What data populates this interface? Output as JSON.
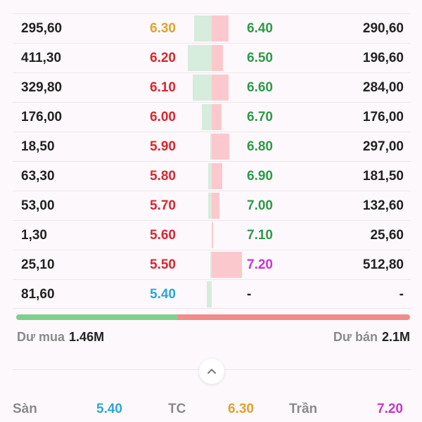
{
  "colors": {
    "ref": "#e0a22a",
    "down": "#d9262f",
    "up": "#2e9a47",
    "ceiling": "#c634d3",
    "floor": "#2aa7d6",
    "bid_bar": "#d6ecdc",
    "ask_bar": "#fbc9cd"
  },
  "order_book": {
    "rows": [
      {
        "bid_vol": "295,60",
        "bid_price": "6.30",
        "bid_color": "ref",
        "bid_fill": 0.28,
        "ask_price": "6.40",
        "ask_color": "up",
        "ask_vol": "290,60",
        "ask_fill": 0.27
      },
      {
        "bid_vol": "411,30",
        "bid_price": "6.20",
        "bid_color": "down",
        "bid_fill": 0.38,
        "ask_price": "6.50",
        "ask_color": "up",
        "ask_vol": "196,60",
        "ask_fill": 0.18
      },
      {
        "bid_vol": "329,80",
        "bid_price": "6.10",
        "bid_color": "down",
        "bid_fill": 0.3,
        "ask_price": "6.60",
        "ask_color": "up",
        "ask_vol": "284,00",
        "ask_fill": 0.27
      },
      {
        "bid_vol": "176,00",
        "bid_price": "6.00",
        "bid_color": "down",
        "bid_fill": 0.16,
        "ask_price": "6.70",
        "ask_color": "up",
        "ask_vol": "176,00",
        "ask_fill": 0.16
      },
      {
        "bid_vol": "18,50",
        "bid_price": "5.90",
        "bid_color": "down",
        "bid_fill": 0.02,
        "ask_price": "6.80",
        "ask_color": "up",
        "ask_vol": "297,00",
        "ask_fill": 0.28
      },
      {
        "bid_vol": "63,30",
        "bid_price": "5.80",
        "bid_color": "down",
        "bid_fill": 0.06,
        "ask_price": "6.90",
        "ask_color": "up",
        "ask_vol": "181,50",
        "ask_fill": 0.17
      },
      {
        "bid_vol": "53,00",
        "bid_price": "5.70",
        "bid_color": "down",
        "bid_fill": 0.05,
        "ask_price": "7.00",
        "ask_color": "up",
        "ask_vol": "132,60",
        "ask_fill": 0.12
      },
      {
        "bid_vol": "1,30",
        "bid_price": "5.60",
        "bid_color": "down",
        "bid_fill": 0.0,
        "ask_price": "7.10",
        "ask_color": "up",
        "ask_vol": "25,60",
        "ask_fill": 0.02
      },
      {
        "bid_vol": "25,10",
        "bid_price": "5.50",
        "bid_color": "down",
        "bid_fill": 0.02,
        "ask_price": "7.20",
        "ask_color": "ceiling",
        "ask_vol": "512,80",
        "ask_fill": 0.48
      },
      {
        "bid_vol": "81,60",
        "bid_price": "5.40",
        "bid_color": "floor",
        "bid_fill": 0.08,
        "ask_price": "-",
        "ask_color": "text",
        "ask_vol": "-",
        "ask_fill": 0.0
      }
    ]
  },
  "ratio": {
    "buy_fraction": 0.41
  },
  "totals": {
    "buy_label": "Dư mua",
    "buy_value": "1.46M",
    "sell_label": "Dư bán",
    "sell_value": "2.1M"
  },
  "collapse": {
    "icon": "chevron-up-icon"
  },
  "summary": {
    "floor_label": "Sàn",
    "floor_value": "5.40",
    "ref_label": "TC",
    "ref_value": "6.30",
    "ceiling_label": "Trần",
    "ceiling_value": "7.20"
  }
}
